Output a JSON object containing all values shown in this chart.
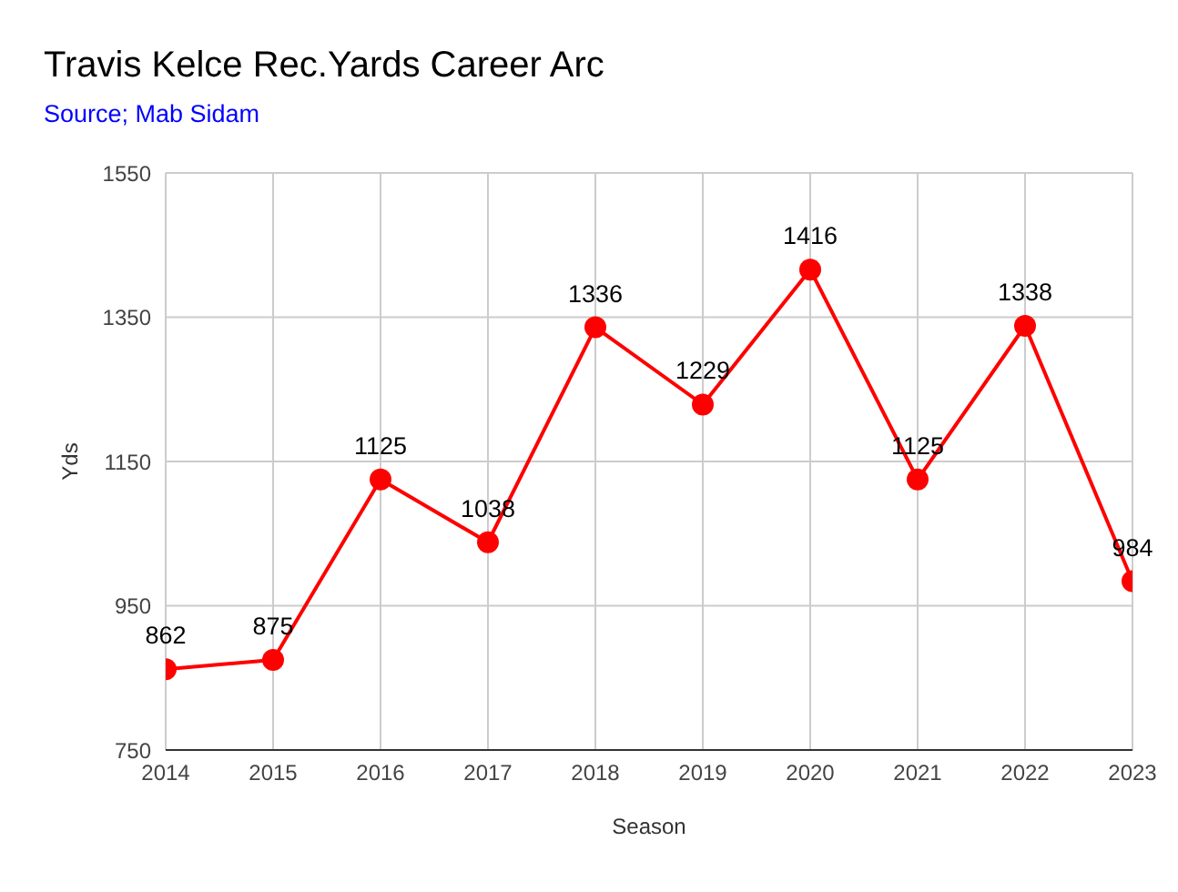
{
  "chart_data": {
    "type": "line",
    "title": "Travis Kelce Rec.Yards Career Arc",
    "subtitle": "Source; Mab Sidam",
    "xlabel": "Season",
    "ylabel": "Yds",
    "x": [
      2014,
      2015,
      2016,
      2017,
      2018,
      2019,
      2020,
      2021,
      2022,
      2023
    ],
    "series": [
      {
        "color": "#ff0000",
        "values": [
          862,
          875,
          1125,
          1038,
          1336,
          1229,
          1416,
          1125,
          1338,
          984
        ]
      }
    ],
    "xlim": [
      2014,
      2023
    ],
    "xticks": [
      2014,
      2015,
      2016,
      2017,
      2018,
      2019,
      2020,
      2021,
      2022,
      2023
    ],
    "ylim": [
      750,
      1550
    ],
    "yticks": [
      750,
      950,
      1150,
      1350,
      1550
    ],
    "grid": true,
    "data_labels": true,
    "marker": "circle",
    "line_style": "solid",
    "legend": false
  }
}
